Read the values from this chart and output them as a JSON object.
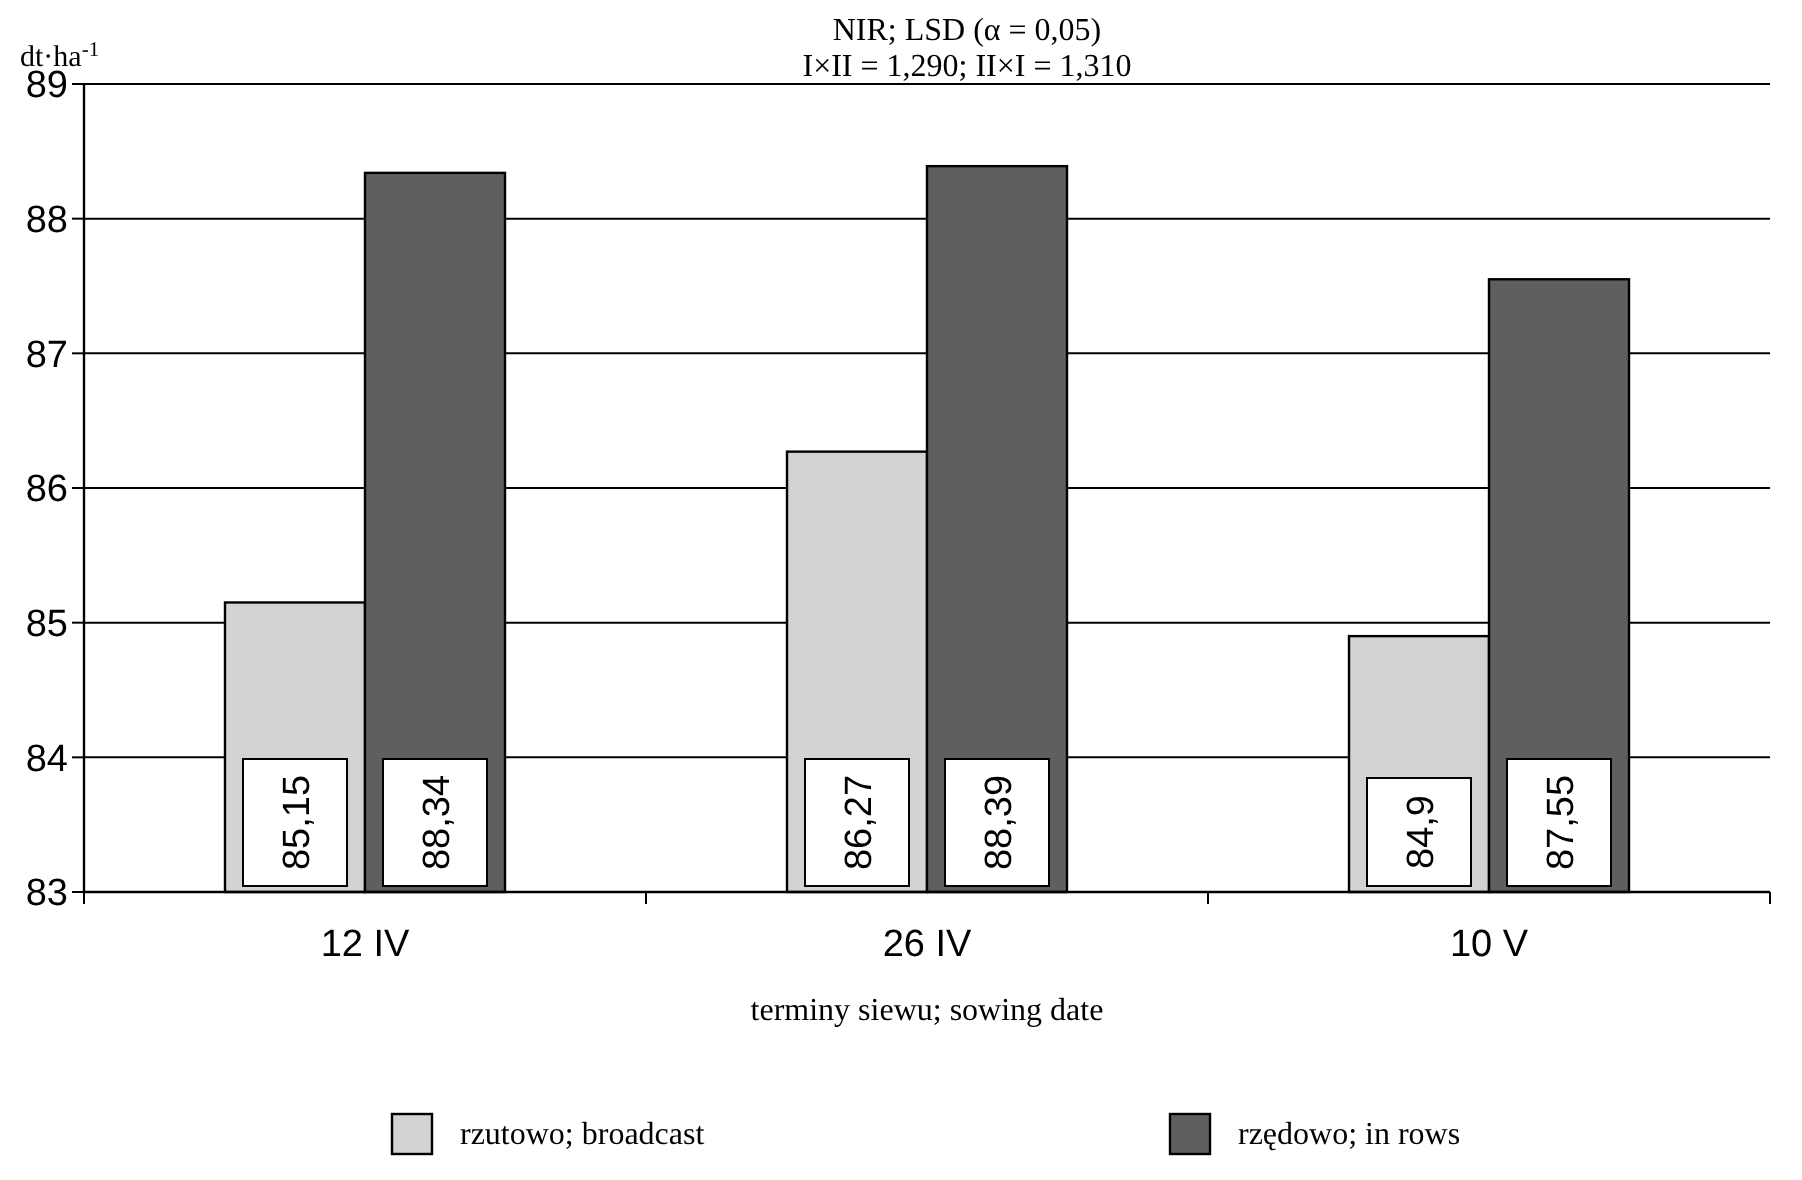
{
  "chart_data": {
    "type": "bar",
    "title": "NIR; LSD (α = 0,05)",
    "subtitle": "I×II = 1,290; II×I = 1,310",
    "ylabel": "dt·ha$^{-1}$",
    "xlabel": "terminy siewu; sowing date",
    "categories": [
      "12 IV",
      "26 IV",
      "10 V"
    ],
    "series": [
      {
        "name": "rzutowo; broadcast",
        "color": "#d3d3d3",
        "values": [
          85.15,
          86.27,
          84.9
        ],
        "value_labels": [
          "85,15",
          "86,27",
          "84,9"
        ]
      },
      {
        "name": "rzędowo; in rows",
        "color": "#5f5f5f",
        "values": [
          88.34,
          88.39,
          87.55
        ],
        "value_labels": [
          "88,34",
          "88,39",
          "87,55"
        ]
      }
    ],
    "ylim": [
      83,
      89
    ],
    "yticks": [
      83,
      84,
      85,
      86,
      87,
      88,
      89
    ],
    "grid": "y",
    "legend": "bottom"
  }
}
